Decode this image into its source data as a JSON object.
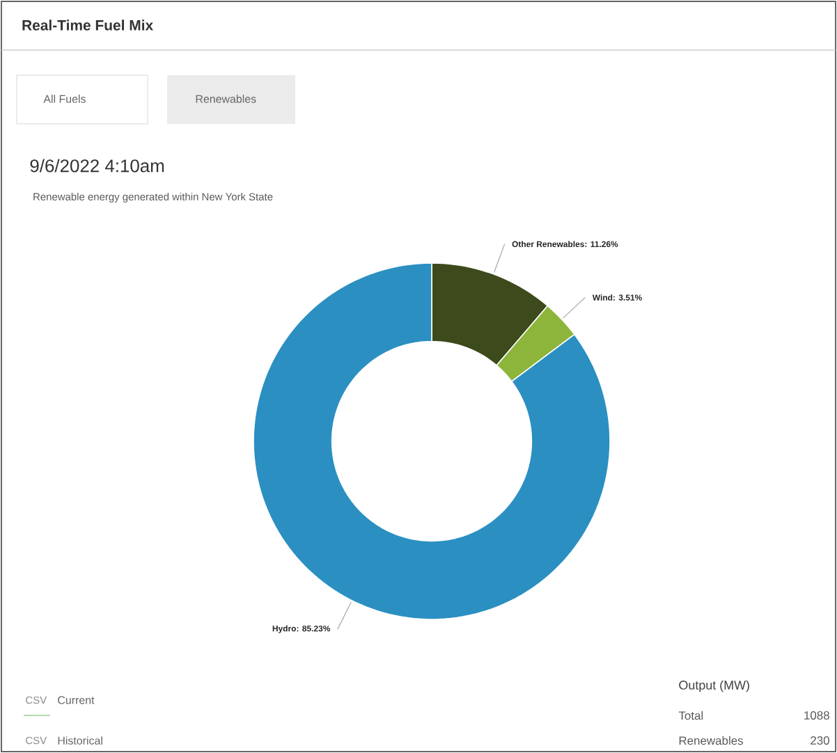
{
  "chart_data": {
    "type": "donut",
    "title": "Real-Time Fuel Mix",
    "subtitle": "Renewable energy generated within New York State",
    "categories": [
      "Other Renewables",
      "Wind",
      "Hydro"
    ],
    "values": [
      11.26,
      3.51,
      85.23
    ],
    "colors": [
      "#3d4a1c",
      "#8db53c",
      "#2b8fc2"
    ],
    "value_labels": [
      ": 11.26%",
      ": 3.51%",
      ": 85.23%"
    ],
    "annotations": [
      "9/6/2022 4:10am",
      "All Fuels",
      "Renewables",
      "CSV",
      "Current",
      "CSV",
      "Historical",
      "Output (MW)",
      "Total",
      "1088",
      "Renewables",
      "230"
    ]
  }
}
